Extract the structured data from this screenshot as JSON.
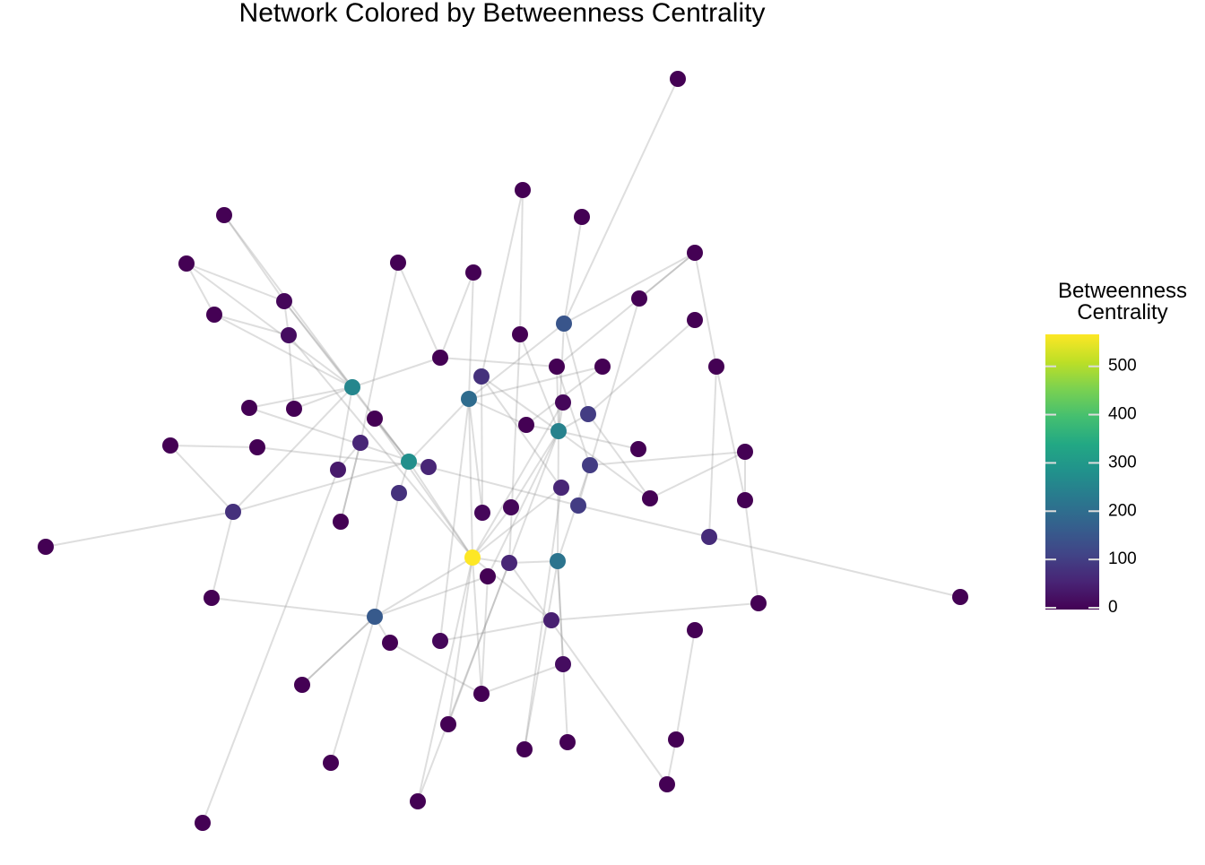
{
  "chart_data": {
    "type": "network",
    "title": "Network Colored by Betweenness Centrality",
    "legend_title": "Betweenness\nCentrality",
    "colormap": "viridis",
    "values": [
      0,
      0,
      0,
      0,
      0,
      0,
      0,
      0,
      0,
      0,
      10,
      0,
      20,
      150,
      0,
      0,
      0,
      0,
      0,
      80,
      260,
      200,
      10,
      0,
      0,
      100,
      0,
      0,
      250,
      0,
      0,
      60,
      0,
      0,
      280,
      60,
      100,
      40,
      60,
      80,
      0,
      0,
      10,
      10,
      100,
      80,
      0,
      0,
      70,
      570,
      60,
      220,
      0,
      0,
      0,
      0,
      160,
      50,
      0,
      0,
      10,
      20,
      0,
      0,
      0,
      0,
      0,
      0,
      0,
      0,
      0,
      0
    ],
    "clim": [
      0,
      570
    ],
    "cticks": [
      0,
      100,
      200,
      300,
      400,
      500
    ]
  }
}
